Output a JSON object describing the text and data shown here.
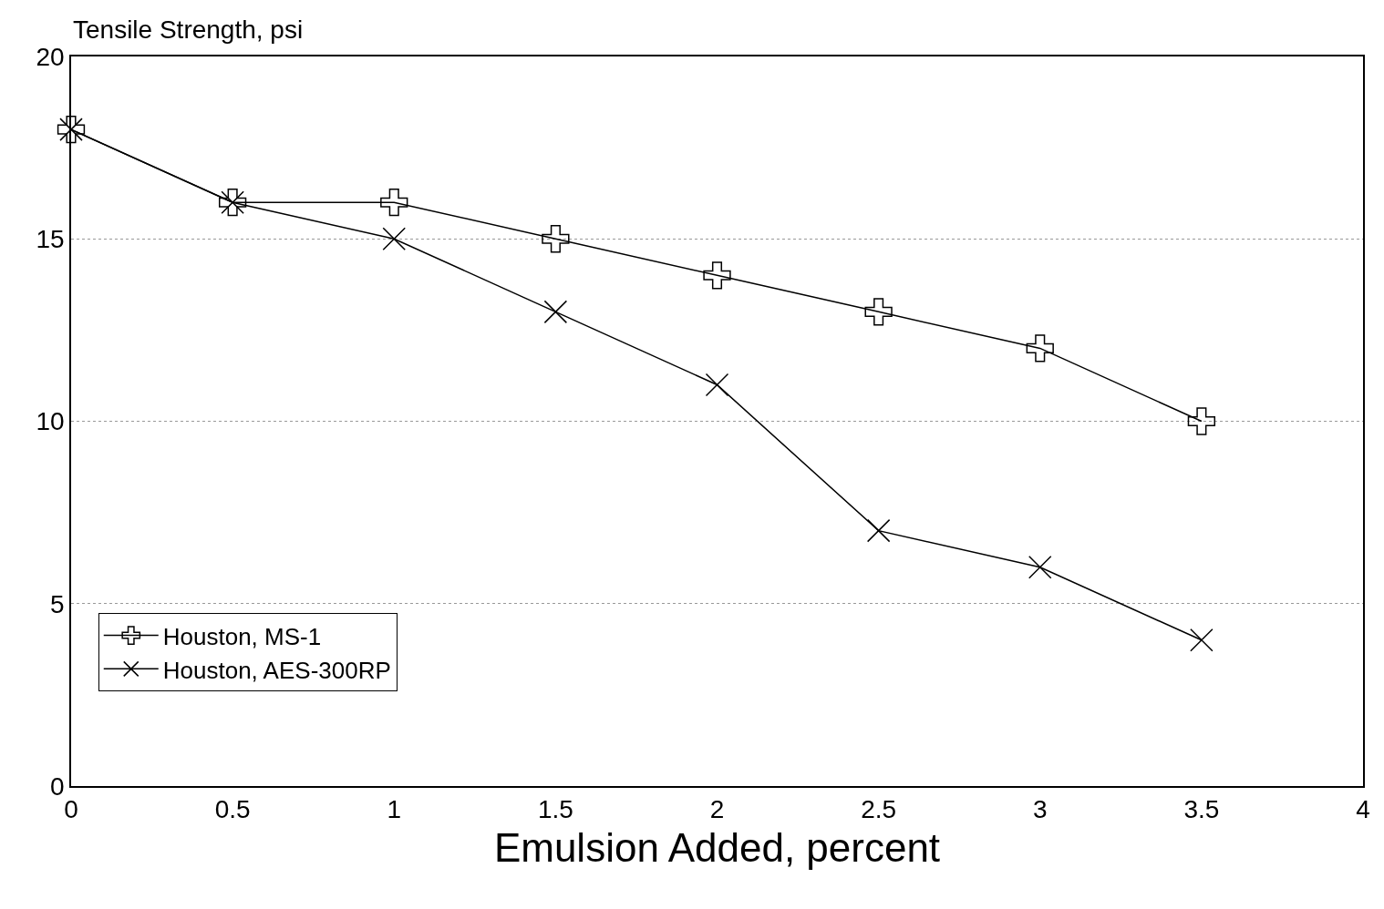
{
  "chart_data": {
    "type": "line",
    "ylabel": "Tensile Strength, psi",
    "xlabel": "Emulsion Added, percent",
    "x": [
      0,
      0.5,
      1,
      1.5,
      2,
      2.5,
      3,
      3.5
    ],
    "series": [
      {
        "name": "Houston, MS-1",
        "color": "#000000",
        "marker": "cross",
        "values": [
          18,
          16,
          16,
          15,
          14,
          13,
          12,
          10
        ]
      },
      {
        "name": "Houston, AES-300RP",
        "color": "#000000",
        "marker": "x",
        "values": [
          18,
          16,
          15,
          13,
          11,
          7,
          6,
          4
        ]
      }
    ],
    "xlim": [
      0,
      4
    ],
    "xticks": [
      0,
      0.5,
      1,
      1.5,
      2,
      2.5,
      3,
      3.5,
      4
    ],
    "ylim": [
      0,
      20
    ],
    "yticks": [
      0,
      5,
      10,
      15,
      20
    ],
    "grid": "y",
    "legend": "bottom left",
    "line_style": "solid"
  }
}
